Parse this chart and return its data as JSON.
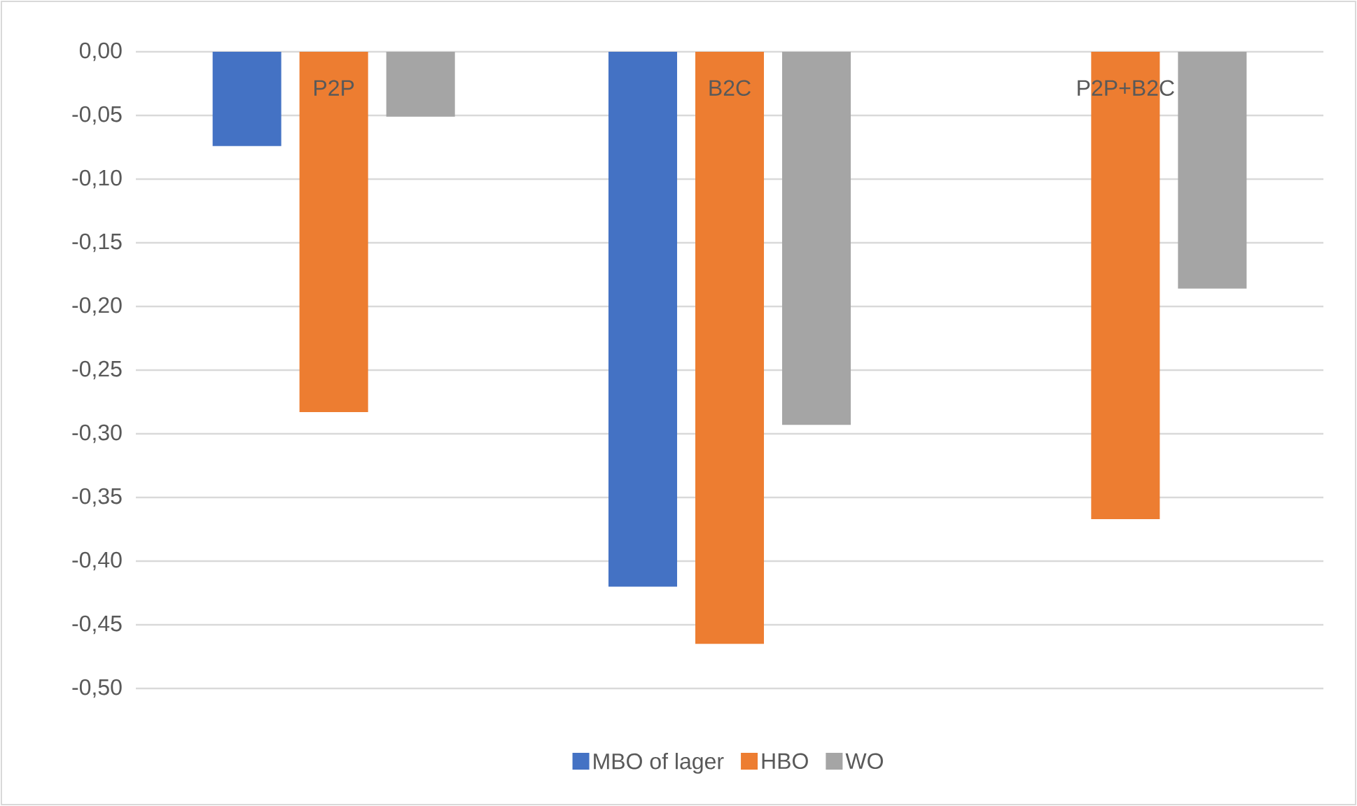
{
  "chart_data": {
    "type": "bar",
    "categories": [
      "P2P",
      "B2C",
      "P2P+B2C"
    ],
    "series": [
      {
        "name": "MBO of lager",
        "color": "#4472c4",
        "values": [
          -0.074,
          -0.42,
          null
        ]
      },
      {
        "name": "HBO",
        "color": "#ed7d31",
        "values": [
          -0.283,
          -0.465,
          -0.367
        ]
      },
      {
        "name": "WO",
        "color": "#a5a5a5",
        "values": [
          -0.051,
          -0.293,
          -0.186
        ]
      }
    ],
    "ylim": [
      -0.5,
      0
    ],
    "yticks": [
      {
        "value": 0,
        "label": "0,00"
      },
      {
        "value": -0.05,
        "label": "-0,05"
      },
      {
        "value": -0.1,
        "label": "-0,10"
      },
      {
        "value": -0.15,
        "label": "-0,15"
      },
      {
        "value": -0.2,
        "label": "-0,20"
      },
      {
        "value": -0.25,
        "label": "-0,25"
      },
      {
        "value": -0.3,
        "label": "-0,30"
      },
      {
        "value": -0.35,
        "label": "-0,35"
      },
      {
        "value": -0.4,
        "label": "-0,40"
      },
      {
        "value": -0.45,
        "label": "-0,45"
      },
      {
        "value": -0.5,
        "label": "-0,50"
      }
    ],
    "grid": "y",
    "legend": "bottom"
  }
}
